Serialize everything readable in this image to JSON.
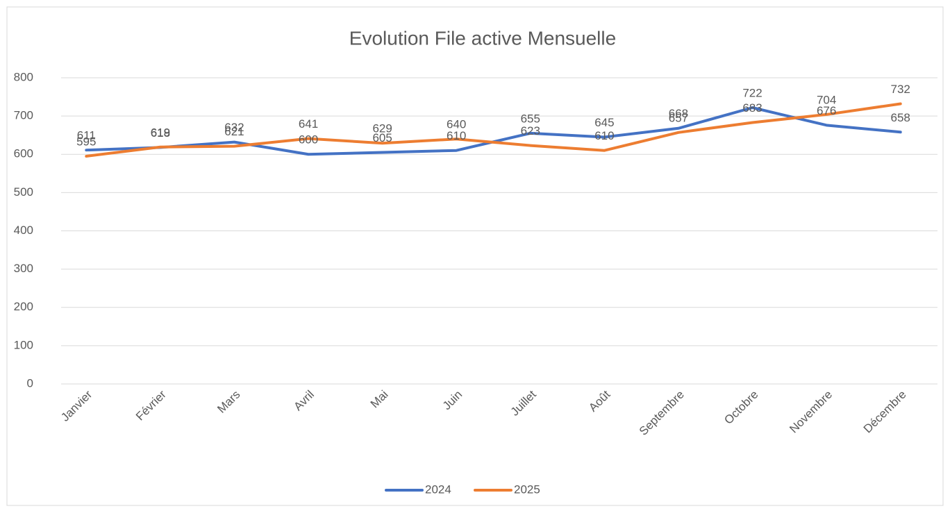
{
  "chart_data": {
    "type": "line",
    "title": "Evolution File active Mensuelle",
    "categories": [
      "Janvier",
      "Février",
      "Mars",
      "Avril",
      "Mai",
      "Juin",
      "Juillet",
      "Août",
      "Septembre",
      "Octobre",
      "Novembre",
      "Décembre"
    ],
    "series": [
      {
        "name": "2024",
        "color": "#4472c4",
        "values": [
          611,
          618,
          632,
          600,
          605,
          610,
          655,
          645,
          668,
          722,
          676,
          658
        ]
      },
      {
        "name": "2025",
        "color": "#ed7d31",
        "values": [
          595,
          619,
          621,
          641,
          629,
          640,
          623,
          610,
          657,
          683,
          704,
          732
        ]
      }
    ],
    "ylim": [
      0,
      800
    ],
    "yticks": [
      0,
      100,
      200,
      300,
      400,
      500,
      600,
      700,
      800
    ],
    "grid": true,
    "legend": "bottom"
  }
}
